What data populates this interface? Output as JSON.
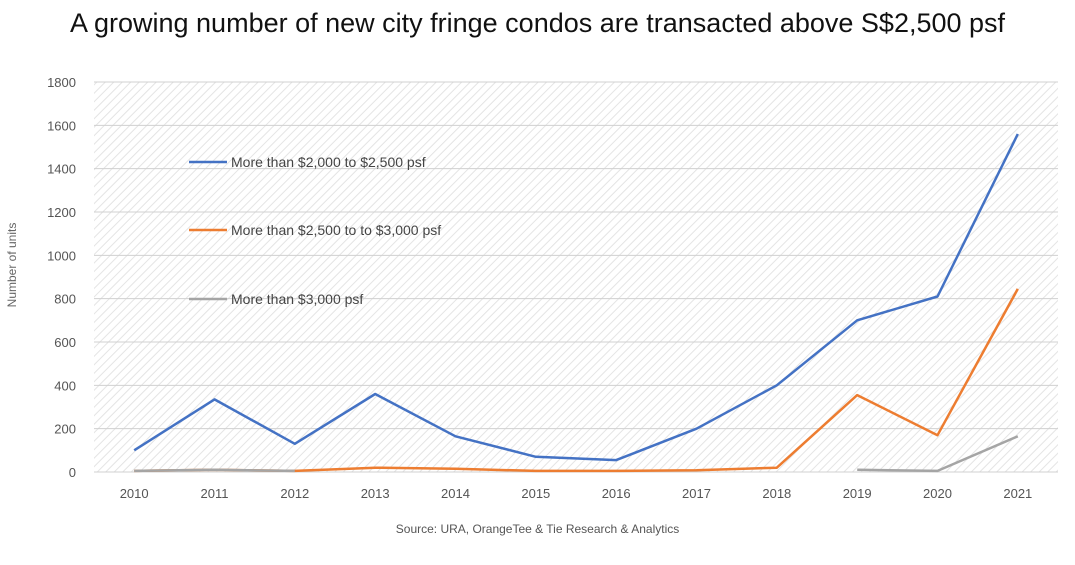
{
  "chart_data": {
    "type": "line",
    "title": "A growing number of new city fringe condos are transacted above S$2,500 psf",
    "ylabel": "Number of units",
    "xlabel": "",
    "source": "Source: URA, OrangeTee & Tie Research & Analytics",
    "x": [
      "2010",
      "2011",
      "2012",
      "2013",
      "2014",
      "2015",
      "2016",
      "2017",
      "2018",
      "2019",
      "2020",
      "2021"
    ],
    "ylim": [
      0,
      1800
    ],
    "yticks": [
      0,
      200,
      400,
      600,
      800,
      1000,
      1200,
      1400,
      1600,
      1800
    ],
    "grid": true,
    "legend_position": "top-left",
    "series": [
      {
        "name": "More than $2,000 to $2,500 psf",
        "color": "#4472c4",
        "values": [
          100,
          335,
          130,
          360,
          165,
          70,
          55,
          200,
          400,
          700,
          810,
          1560
        ]
      },
      {
        "name": "More than $2,500 to to $3,000 psf",
        "color": "#ed7d31",
        "values": [
          5,
          10,
          5,
          20,
          15,
          5,
          5,
          8,
          20,
          355,
          170,
          845
        ]
      },
      {
        "name": "More than $3,000 psf",
        "color": "#a5a5a5",
        "values": [
          5,
          10,
          5,
          null,
          null,
          null,
          null,
          null,
          null,
          10,
          5,
          165
        ]
      }
    ]
  }
}
